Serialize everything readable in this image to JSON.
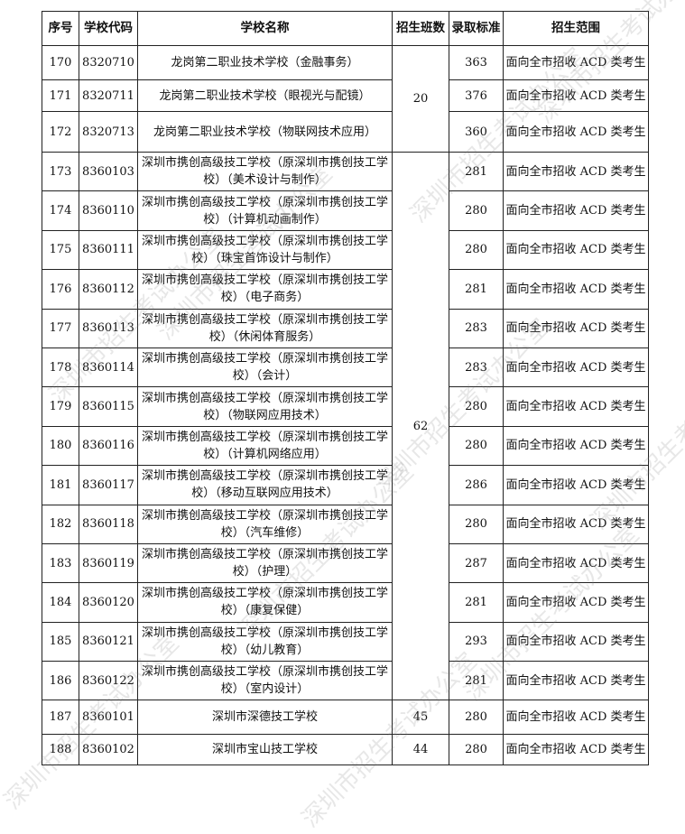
{
  "headers": [
    "序号",
    "学校代码",
    "学校名称",
    "招生班数",
    "录取标准",
    "招生范围"
  ],
  "rows": [
    {
      "no": "170",
      "code": "8320710",
      "name": "龙岗第二职业技术学校（金融事务）",
      "classes": "20",
      "span": 3,
      "score": "363",
      "scope": "面向全市招收 ACD 类考生"
    },
    {
      "no": "171",
      "code": "8320711",
      "name": "龙岗第二职业技术学校（眼视光与配镜）",
      "score": "376",
      "scope": "面向全市招收 ACD 类考生"
    },
    {
      "no": "172",
      "code": "8320713",
      "name": "龙岗第二职业技术学校（物联网技术应用）",
      "score": "360",
      "scope": "面向全市招收 ACD 类考生"
    },
    {
      "no": "173",
      "code": "8360103",
      "name": "深圳市携创高级技工学校（原深圳市携创技工学校）（美术设计与制作）",
      "classes": "62",
      "span": 14,
      "score": "281",
      "scope": "面向全市招收 ACD 类考生"
    },
    {
      "no": "174",
      "code": "8360110",
      "name": "深圳市携创高级技工学校（原深圳市携创技工学校）（计算机动画制作）",
      "score": "280",
      "scope": "面向全市招收 ACD 类考生"
    },
    {
      "no": "175",
      "code": "8360111",
      "name": "深圳市携创高级技工学校（原深圳市携创技工学校）（珠宝首饰设计与制作）",
      "score": "280",
      "scope": "面向全市招收 ACD 类考生"
    },
    {
      "no": "176",
      "code": "8360112",
      "name": "深圳市携创高级技工学校（原深圳市携创技工学校）（电子商务）",
      "score": "281",
      "scope": "面向全市招收 ACD 类考生"
    },
    {
      "no": "177",
      "code": "8360113",
      "name": "深圳市携创高级技工学校（原深圳市携创技工学校）（休闲体育服务）",
      "score": "283",
      "scope": "面向全市招收 ACD 类考生"
    },
    {
      "no": "178",
      "code": "8360114",
      "name": "深圳市携创高级技工学校（原深圳市携创技工学校）（会计）",
      "score": "283",
      "scope": "面向全市招收 ACD 类考生"
    },
    {
      "no": "179",
      "code": "8360115",
      "name": "深圳市携创高级技工学校（原深圳市携创技工学校）（物联网应用技术）",
      "score": "280",
      "scope": "面向全市招收 ACD 类考生"
    },
    {
      "no": "180",
      "code": "8360116",
      "name": "深圳市携创高级技工学校（原深圳市携创技工学校）（计算机网络应用）",
      "score": "280",
      "scope": "面向全市招收 ACD 类考生"
    },
    {
      "no": "181",
      "code": "8360117",
      "name": "深圳市携创高级技工学校（原深圳市携创技工学校）（移动互联网应用技术）",
      "score": "286",
      "scope": "面向全市招收 ACD 类考生"
    },
    {
      "no": "182",
      "code": "8360118",
      "name": "深圳市携创高级技工学校（原深圳市携创技工学校）（汽车维修）",
      "score": "280",
      "scope": "面向全市招收 ACD 类考生"
    },
    {
      "no": "183",
      "code": "8360119",
      "name": "深圳市携创高级技工学校（原深圳市携创技工学校）（护理）",
      "score": "287",
      "scope": "面向全市招收 ACD 类考生"
    },
    {
      "no": "184",
      "code": "8360120",
      "name": "深圳市携创高级技工学校（原深圳市携创技工学校）（康复保健）",
      "score": "281",
      "scope": "面向全市招收 ACD 类考生"
    },
    {
      "no": "185",
      "code": "8360121",
      "name": "深圳市携创高级技工学校（原深圳市携创技工学校）（幼儿教育）",
      "score": "293",
      "scope": "面向全市招收 ACD 类考生"
    },
    {
      "no": "186",
      "code": "8360122",
      "name": "深圳市携创高级技工学校（原深圳市携创技工学校）（室内设计）",
      "score": "281",
      "scope": "面向全市招收 ACD 类考生"
    },
    {
      "no": "187",
      "code": "8360101",
      "name": "深圳市深德技工学校",
      "classes": "45",
      "span": 1,
      "score": "280",
      "scope": "面向全市招收 ACD 类考生"
    },
    {
      "no": "188",
      "code": "8360102",
      "name": "深圳市宝山技工学校",
      "classes": "44",
      "span": 1,
      "score": "280",
      "scope": "面向全市招收 ACD 类考生"
    }
  ],
  "watermark": "深圳市招生考试办公室"
}
